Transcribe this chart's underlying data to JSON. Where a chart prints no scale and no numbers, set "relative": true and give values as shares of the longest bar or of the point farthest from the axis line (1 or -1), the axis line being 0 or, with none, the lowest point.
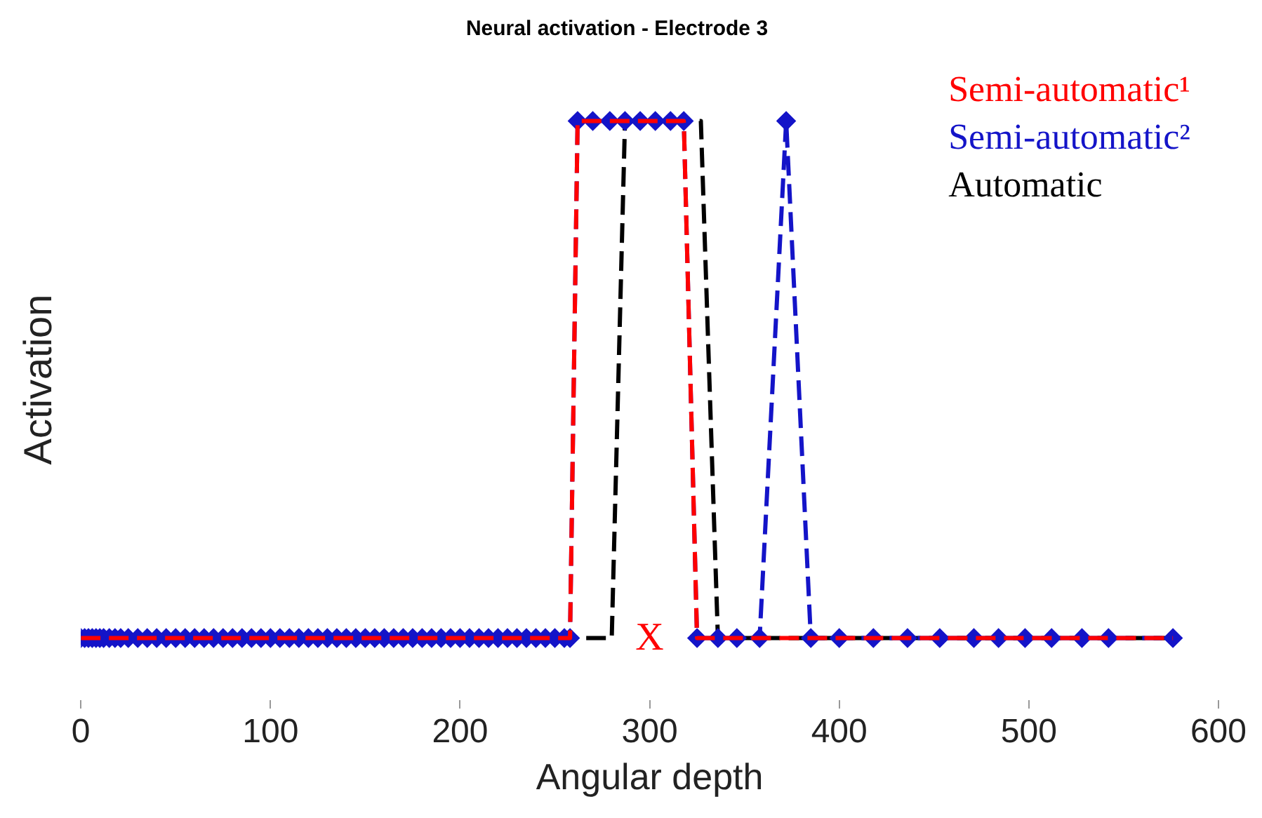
{
  "chart_data": {
    "type": "line",
    "title": "Neural activation - Electrode 3",
    "xlabel": "Angular depth",
    "ylabel": "Activation",
    "relative": true,
    "xlim": [
      0,
      600
    ],
    "xticks": [
      0,
      100,
      200,
      300,
      400,
      500,
      600
    ],
    "grid": false,
    "legend": "top right",
    "annotations": [
      "X"
    ],
    "series": [
      {
        "name": "Semi-automatic¹",
        "color": "#ff0000",
        "line_style": "dashed",
        "marker": "none",
        "x": [
          0,
          258,
          262,
          318,
          325,
          576
        ],
        "values": [
          0,
          0,
          1,
          1,
          0,
          0
        ]
      },
      {
        "name": "Semi-automatic²",
        "color": "#1414c8",
        "line_style": "dashed",
        "marker": "diamond",
        "x": [
          0,
          2,
          4,
          6,
          8,
          10,
          12,
          15,
          18,
          21,
          25,
          30,
          35,
          40,
          45,
          50,
          55,
          60,
          65,
          70,
          75,
          80,
          85,
          90,
          95,
          100,
          105,
          110,
          115,
          120,
          125,
          130,
          135,
          140,
          145,
          150,
          155,
          160,
          165,
          170,
          175,
          180,
          185,
          190,
          195,
          200,
          205,
          210,
          215,
          220,
          225,
          230,
          235,
          240,
          245,
          250,
          255,
          258,
          262,
          270,
          279,
          287,
          295,
          303,
          311,
          318,
          325,
          336,
          346,
          358,
          372,
          385,
          400,
          418,
          436,
          453,
          471,
          484,
          498,
          512,
          528,
          542,
          576
        ],
        "values": [
          0,
          0,
          0,
          0,
          0,
          0,
          0,
          0,
          0,
          0,
          0,
          0,
          0,
          0,
          0,
          0,
          0,
          0,
          0,
          0,
          0,
          0,
          0,
          0,
          0,
          0,
          0,
          0,
          0,
          0,
          0,
          0,
          0,
          0,
          0,
          0,
          0,
          0,
          0,
          0,
          0,
          0,
          0,
          0,
          0,
          0,
          0,
          0,
          0,
          0,
          0,
          0,
          0,
          0,
          0,
          0,
          0,
          0,
          1,
          1,
          1,
          1,
          1,
          1,
          1,
          1,
          0,
          0,
          0,
          0,
          1,
          0,
          0,
          0,
          0,
          0,
          0,
          0,
          0,
          0,
          0,
          0,
          0
        ]
      },
      {
        "name": "Automatic",
        "color": "#000000",
        "line_style": "dashed",
        "marker": "none",
        "x": [
          0,
          280,
          287,
          327,
          336,
          576
        ],
        "values": [
          0,
          0,
          1,
          1,
          0,
          0
        ]
      }
    ]
  }
}
